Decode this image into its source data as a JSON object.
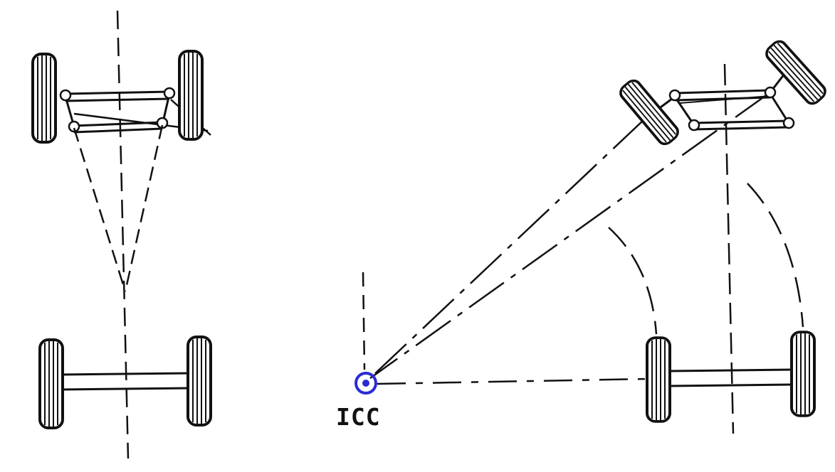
{
  "diagram": {
    "panels": [
      {
        "id": "straight",
        "description_hidden": true
      },
      {
        "id": "turning",
        "description_hidden": true
      }
    ],
    "labels": {
      "icc": "ICC"
    },
    "colors": {
      "ink": "#111111",
      "icc_marker": "#2b2bd6",
      "background": "#ffffff"
    }
  }
}
